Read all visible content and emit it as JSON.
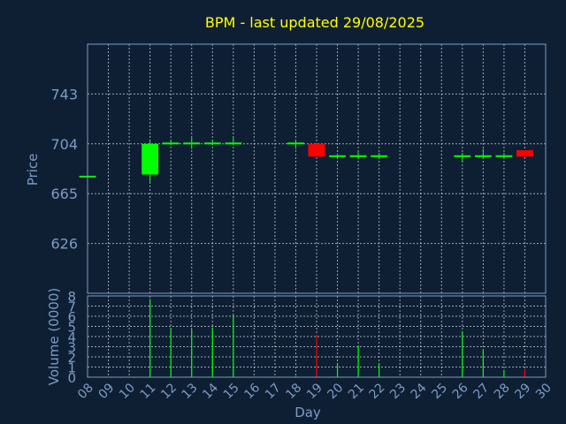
{
  "chart_data": {
    "type": "candlestick",
    "title": "BPM - last updated 29/08/2025",
    "colors": {
      "background": "#0f1f33",
      "axis_text": "#7a9cc6",
      "title": "#ffff00",
      "grid": "#c8d2e0",
      "up": "#00ff00",
      "down": "#ff0000"
    },
    "price_panel": {
      "ylabel": "Price",
      "ylim": [
        587,
        782
      ],
      "yticks": [
        626,
        665,
        704,
        743
      ],
      "grid": true
    },
    "volume_panel": {
      "ylabel": "Volume (0000)",
      "ylim": [
        0,
        8
      ],
      "yticks": [
        0,
        1,
        2,
        3,
        4,
        5,
        6,
        7,
        8
      ],
      "grid": true
    },
    "xlabel": "Day",
    "xticks": [
      "08",
      "09",
      "10",
      "11",
      "12",
      "13",
      "14",
      "15",
      "16",
      "17",
      "18",
      "19",
      "20",
      "21",
      "22",
      "23",
      "24",
      "25",
      "26",
      "27",
      "28",
      "29",
      "30"
    ],
    "candles": [
      {
        "day": "08",
        "open": 679,
        "high": 679,
        "low": 679,
        "close": 679,
        "volume": 0.1,
        "direction": "up"
      },
      {
        "day": "11",
        "open": 680,
        "high": 707,
        "low": 674,
        "close": 704,
        "volume": 7.7,
        "direction": "up"
      },
      {
        "day": "12",
        "open": 704,
        "high": 707,
        "low": 703,
        "close": 705,
        "volume": 4.8,
        "direction": "up"
      },
      {
        "day": "13",
        "open": 704,
        "high": 709,
        "low": 700,
        "close": 705,
        "volume": 4.7,
        "direction": "up"
      },
      {
        "day": "14",
        "open": 704,
        "high": 707,
        "low": 703,
        "close": 705,
        "volume": 4.9,
        "direction": "up"
      },
      {
        "day": "15",
        "open": 704,
        "high": 709,
        "low": 703,
        "close": 705,
        "volume": 6.1,
        "direction": "up"
      },
      {
        "day": "18",
        "open": 704,
        "high": 707,
        "low": 700,
        "close": 705,
        "volume": 0.1,
        "direction": "up"
      },
      {
        "day": "19",
        "open": 704,
        "high": 704,
        "low": 694,
        "close": 694,
        "volume": 4.2,
        "direction": "down"
      },
      {
        "day": "20",
        "open": 694,
        "high": 696,
        "low": 692,
        "close": 695,
        "volume": 1.4,
        "direction": "up"
      },
      {
        "day": "21",
        "open": 694,
        "high": 698,
        "low": 692,
        "close": 695,
        "volume": 3.1,
        "direction": "up"
      },
      {
        "day": "22",
        "open": 694,
        "high": 697,
        "low": 692,
        "close": 695,
        "volume": 1.3,
        "direction": "up"
      },
      {
        "day": "26",
        "open": 694,
        "high": 697,
        "low": 690,
        "close": 695,
        "volume": 4.5,
        "direction": "up"
      },
      {
        "day": "27",
        "open": 694,
        "high": 700,
        "low": 692,
        "close": 695,
        "volume": 2.7,
        "direction": "up"
      },
      {
        "day": "28",
        "open": 694,
        "high": 697,
        "low": 692,
        "close": 695,
        "volume": 0.7,
        "direction": "up"
      },
      {
        "day": "29",
        "open": 699,
        "high": 699,
        "low": 694,
        "close": 694,
        "volume": 0.8,
        "direction": "down"
      }
    ]
  }
}
